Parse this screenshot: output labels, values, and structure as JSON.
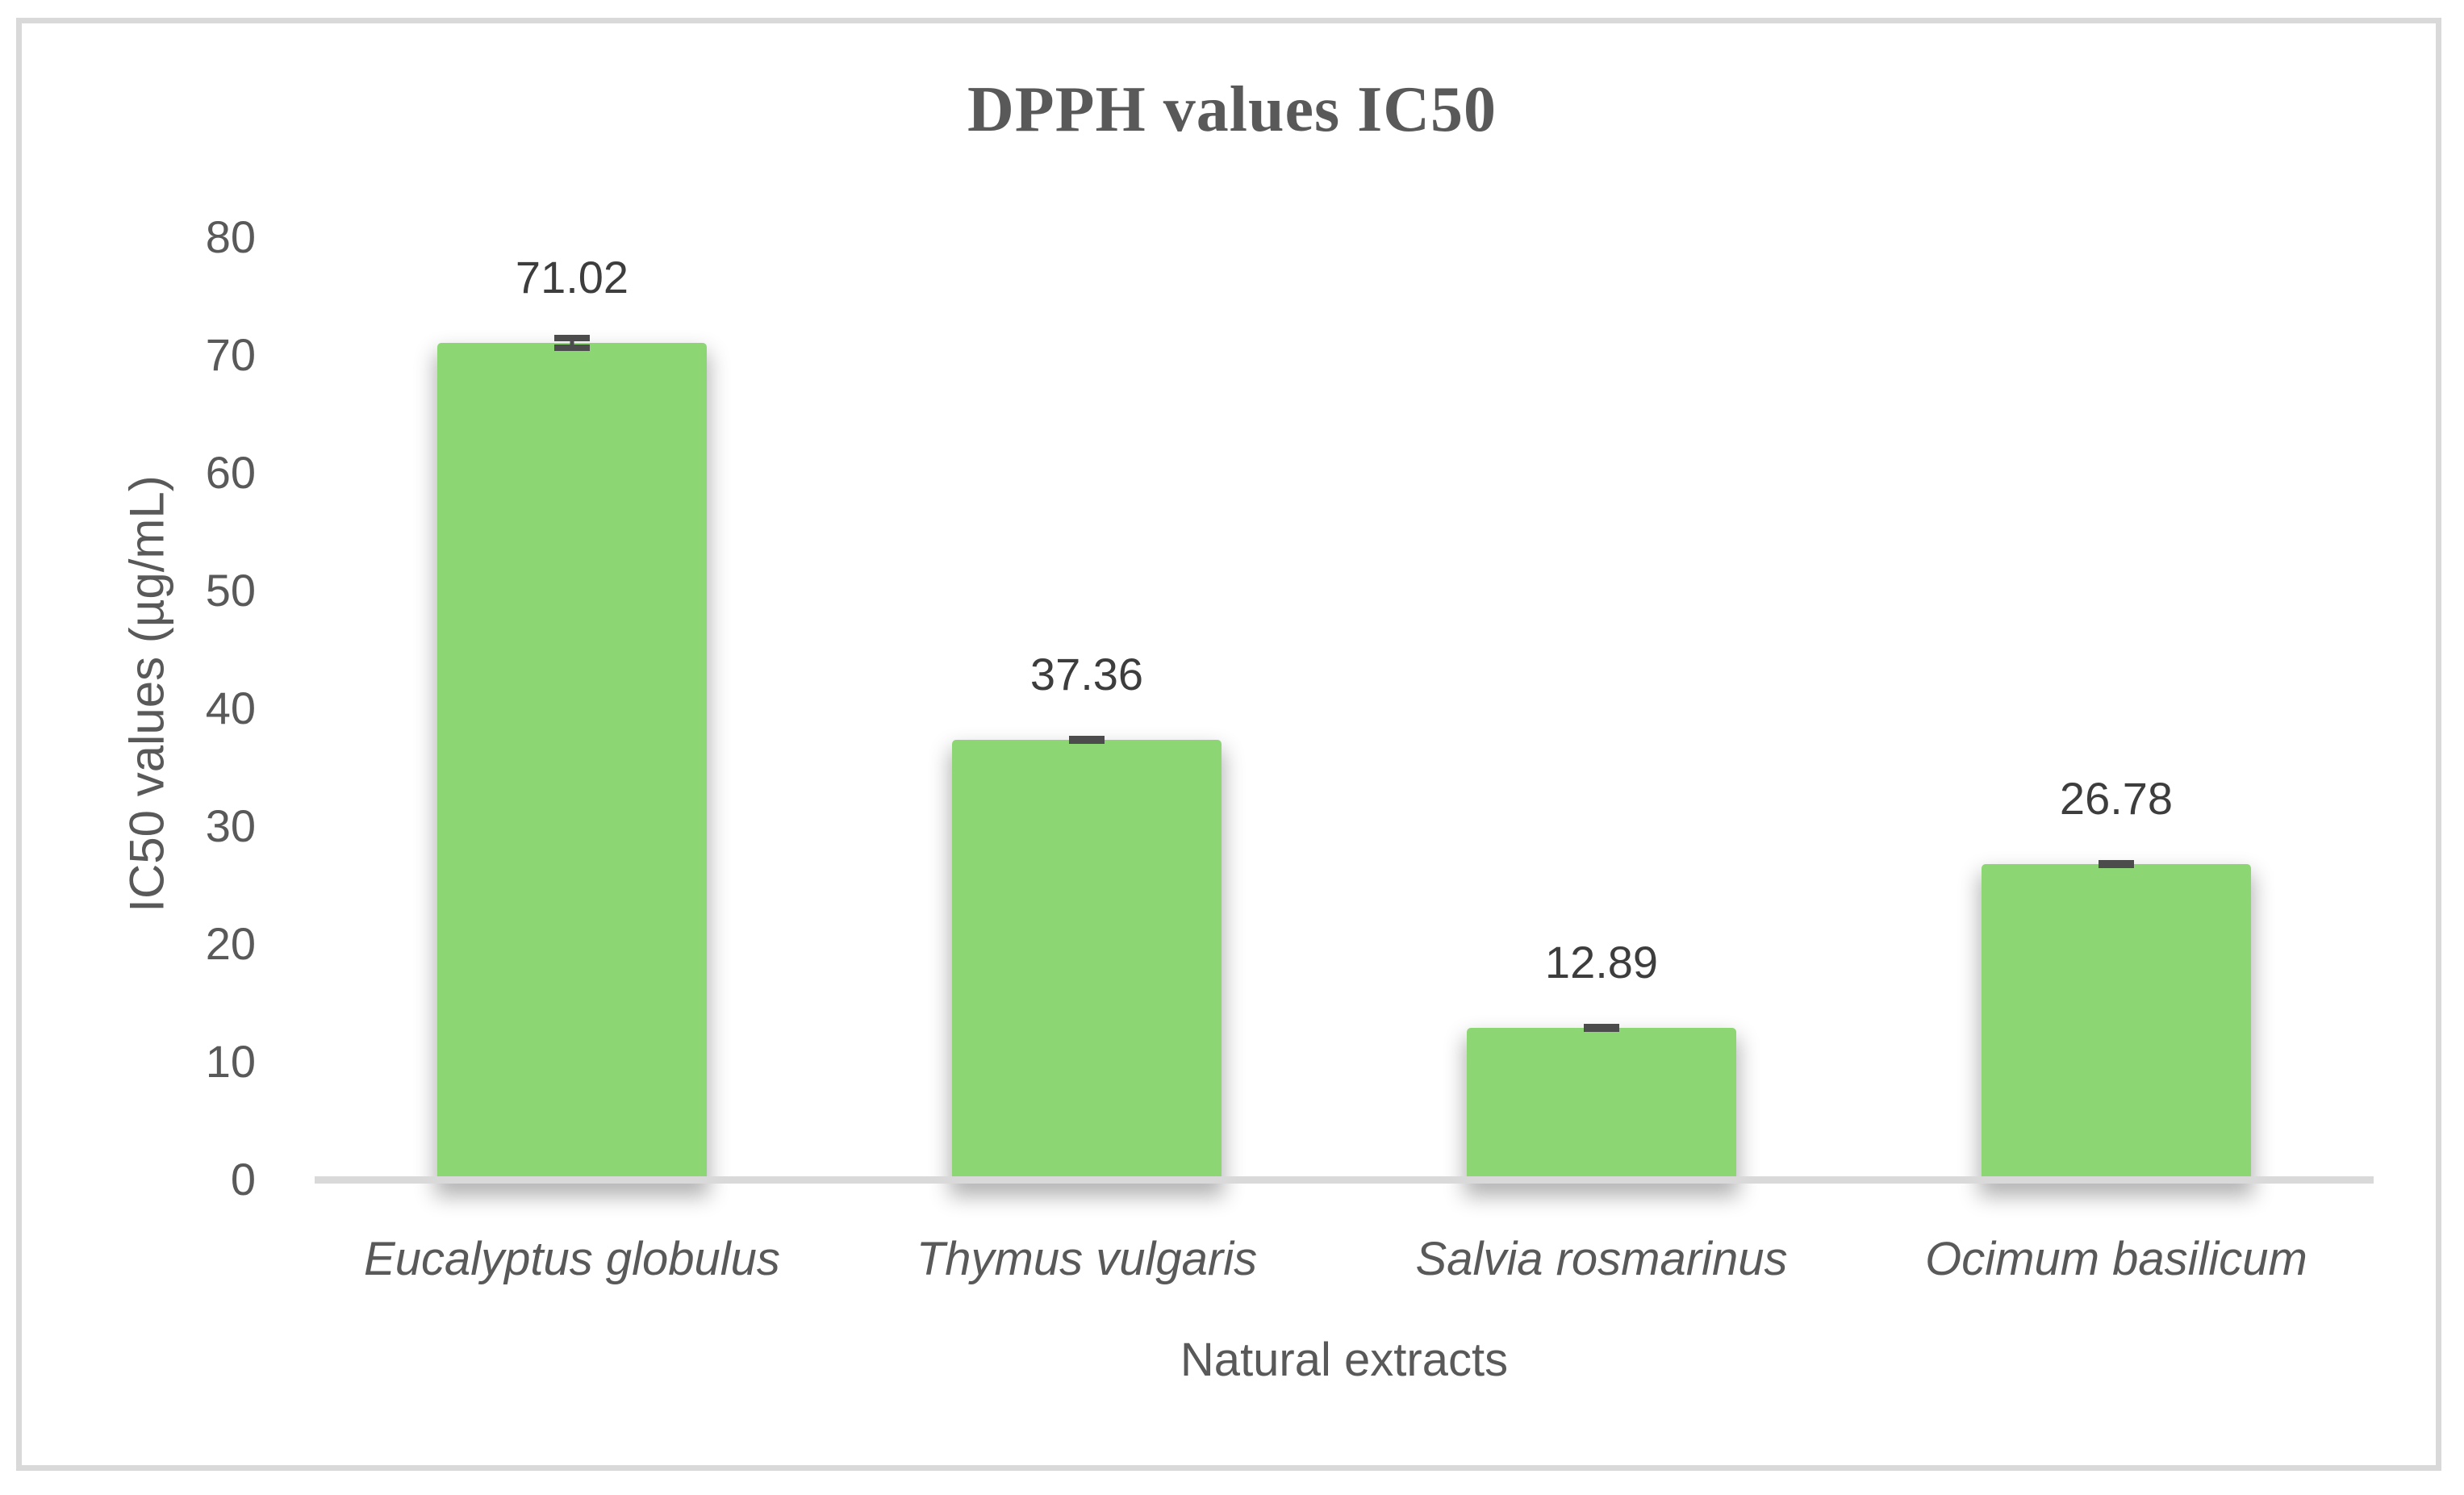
{
  "chart_data": {
    "type": "bar",
    "title": "DPPH values IC50",
    "xlabel": "Natural extracts",
    "ylabel": "IC50 values (µg/mL)",
    "categories": [
      "Eucalyptus globulus",
      "Thymus vulgaris",
      "Salvia rosmarinus",
      "Ocimum basilicum"
    ],
    "values": [
      71.02,
      37.36,
      12.89,
      26.78
    ],
    "data_labels": [
      "71.02",
      "37.36",
      "12.89",
      "26.78"
    ],
    "error_bars": [
      0.7,
      0.25,
      0.25,
      0.25
    ],
    "ylim": [
      0,
      80
    ],
    "yticks": [
      0,
      10,
      20,
      30,
      40,
      50,
      60,
      70,
      80
    ],
    "grid": false,
    "legend": "none",
    "category_label_style": "italic",
    "colors": {
      "bar_fill": "#8cd673",
      "error_bar": "#4c4c4c",
      "axis_line": "#d9d9d9",
      "tick_text": "#595959",
      "data_label_text": "#3d3d3d",
      "title_text": "#595959",
      "frame_border": "#d9d9d9",
      "background": "#ffffff"
    }
  }
}
